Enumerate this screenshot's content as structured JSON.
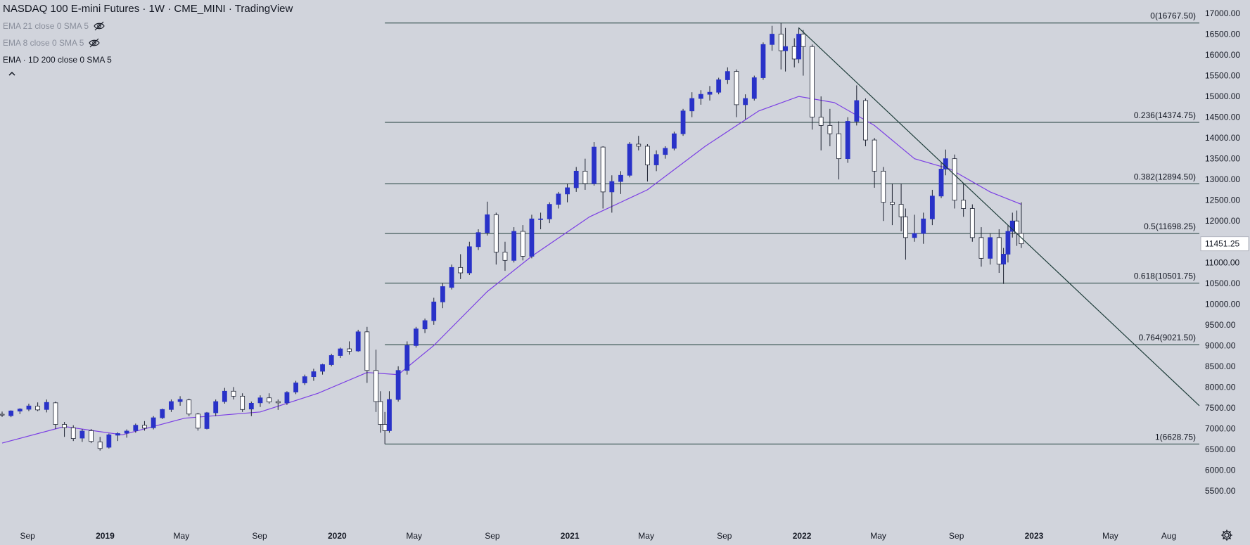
{
  "header": {
    "title": "NASDAQ 100 E-mini Futures · 1W · CME_MINI · TradingView"
  },
  "indicators": [
    {
      "label": "EMA 21 close 0 SMA 5",
      "hidden": true
    },
    {
      "label": "EMA 8 close 0 SMA 5",
      "hidden": true
    },
    {
      "label": "EMA · 1D 200 close 0 SMA 5",
      "hidden": false
    }
  ],
  "icons": {
    "eye_off": "eye-off-icon",
    "collapse": "chevron-up-icon",
    "settings": "gear-icon"
  },
  "colors": {
    "background": "#d1d4dc",
    "bull_candle": "#2932c8",
    "bear_candle": "#ffffff",
    "candle_outline": "#1c2130",
    "ema_line": "#7b3fe4",
    "fib_line": "#1e3d3a",
    "trendline": "#1e3d3a",
    "price_label_bg": "#ffffff"
  },
  "price_axis": {
    "ticks": [
      "17000.00",
      "16500.00",
      "16000.00",
      "15500.00",
      "15000.00",
      "14500.00",
      "14000.00",
      "13500.00",
      "13000.00",
      "12500.00",
      "12000.00",
      "11500.00",
      "11000.00",
      "10500.00",
      "10000.00",
      "9500.00",
      "9000.00",
      "8500.00",
      "8000.00",
      "7500.00",
      "7000.00",
      "6500.00",
      "6000.00",
      "5500.00"
    ],
    "current_price": "11451.25"
  },
  "time_axis": {
    "labels": [
      {
        "text": "Sep",
        "bold": false
      },
      {
        "text": "2019",
        "bold": true
      },
      {
        "text": "May",
        "bold": false
      },
      {
        "text": "Sep",
        "bold": false
      },
      {
        "text": "2020",
        "bold": true
      },
      {
        "text": "May",
        "bold": false
      },
      {
        "text": "Sep",
        "bold": false
      },
      {
        "text": "2021",
        "bold": true
      },
      {
        "text": "May",
        "bold": false
      },
      {
        "text": "Sep",
        "bold": false
      },
      {
        "text": "2022",
        "bold": true
      },
      {
        "text": "May",
        "bold": false
      },
      {
        "text": "Sep",
        "bold": false
      },
      {
        "text": "2023",
        "bold": true
      },
      {
        "text": "May",
        "bold": false
      },
      {
        "text": "Aug",
        "bold": false
      }
    ]
  },
  "chart_data": {
    "type": "candlestick",
    "title": "NASDAQ 100 E-mini Futures · 1W · CME_MINI · TradingView",
    "interval": "1W",
    "ylim": [
      5200,
      17200
    ],
    "x_range": [
      "2018-07-23",
      "2023-09-18"
    ],
    "fibonacci_retracement": {
      "start_date": "2020-03-16",
      "end_date": "2023-09-18",
      "levels": [
        {
          "ratio": "0",
          "price": 16767.5,
          "label": "0(16767.50)"
        },
        {
          "ratio": "0.236",
          "price": 14374.75,
          "label": "0.236(14374.75)"
        },
        {
          "ratio": "0.382",
          "price": 12894.5,
          "label": "0.382(12894.50)"
        },
        {
          "ratio": "0.5",
          "price": 11698.25,
          "label": "0.5(11698.25)"
        },
        {
          "ratio": "0.618",
          "price": 10501.75,
          "label": "0.618(10501.75)"
        },
        {
          "ratio": "0.764",
          "price": 9021.5,
          "label": "0.764(9021.50)"
        },
        {
          "ratio": "1",
          "price": 6628.75,
          "label": "1(6628.75)"
        }
      ]
    },
    "trendline": {
      "start": [
        "2021-12-27",
        16650
      ],
      "end": [
        "2023-09-18",
        7550
      ]
    },
    "ema_line": {
      "name": "EMA · 1D 200 close 0 SMA 5",
      "points": [
        [
          "2018-07-23",
          6650
        ],
        [
          "2018-10-29",
          7050
        ],
        [
          "2019-01-28",
          6850
        ],
        [
          "2019-05-06",
          7250
        ],
        [
          "2019-09-02",
          7400
        ],
        [
          "2019-12-02",
          7850
        ],
        [
          "2020-02-17",
          8350
        ],
        [
          "2020-04-06",
          8300
        ],
        [
          "2020-06-01",
          9000
        ],
        [
          "2020-08-24",
          10300
        ],
        [
          "2020-11-02",
          11150
        ],
        [
          "2021-02-01",
          12100
        ],
        [
          "2021-05-03",
          12750
        ],
        [
          "2021-08-02",
          13800
        ],
        [
          "2021-10-25",
          14650
        ],
        [
          "2021-12-27",
          15000
        ],
        [
          "2022-02-21",
          14850
        ],
        [
          "2022-04-25",
          14300
        ],
        [
          "2022-06-27",
          13500
        ],
        [
          "2022-08-22",
          13250
        ],
        [
          "2022-10-24",
          12700
        ],
        [
          "2022-12-12",
          12400
        ]
      ]
    },
    "candles": [
      [
        "2018-07-23",
        7345,
        7410,
        7280,
        7325
      ],
      [
        "2018-08-06",
        7310,
        7440,
        7275,
        7425
      ],
      [
        "2018-08-20",
        7420,
        7490,
        7350,
        7470
      ],
      [
        "2018-09-03",
        7465,
        7600,
        7420,
        7545
      ],
      [
        "2018-09-17",
        7540,
        7630,
        7420,
        7450
      ],
      [
        "2018-10-01",
        7460,
        7700,
        7390,
        7630
      ],
      [
        "2018-10-15",
        7620,
        7650,
        6990,
        7100
      ],
      [
        "2018-10-29",
        7100,
        7160,
        6800,
        7025
      ],
      [
        "2018-11-12",
        7020,
        7080,
        6700,
        6760
      ],
      [
        "2018-11-26",
        6770,
        6990,
        6680,
        6940
      ],
      [
        "2018-12-10",
        6950,
        6990,
        6650,
        6690
      ],
      [
        "2018-12-24",
        6680,
        6800,
        6470,
        6520
      ],
      [
        "2019-01-07",
        6550,
        6880,
        6520,
        6850
      ],
      [
        "2019-01-21",
        6840,
        6910,
        6700,
        6880
      ],
      [
        "2019-02-04",
        6890,
        6980,
        6780,
        6940
      ],
      [
        "2019-02-18",
        6950,
        7120,
        6900,
        7080
      ],
      [
        "2019-03-04",
        7080,
        7180,
        6950,
        7010
      ],
      [
        "2019-03-18",
        7020,
        7300,
        6980,
        7260
      ],
      [
        "2019-04-01",
        7260,
        7480,
        7230,
        7460
      ],
      [
        "2019-04-15",
        7460,
        7700,
        7400,
        7650
      ],
      [
        "2019-04-29",
        7650,
        7780,
        7550,
        7700
      ],
      [
        "2019-05-13",
        7690,
        7720,
        7300,
        7350
      ],
      [
        "2019-05-27",
        7350,
        7380,
        6950,
        7010
      ],
      [
        "2019-06-10",
        7000,
        7400,
        6980,
        7380
      ],
      [
        "2019-06-24",
        7380,
        7700,
        7300,
        7650
      ],
      [
        "2019-07-08",
        7650,
        7980,
        7600,
        7900
      ],
      [
        "2019-07-22",
        7900,
        8000,
        7700,
        7780
      ],
      [
        "2019-08-05",
        7780,
        7850,
        7400,
        7460
      ],
      [
        "2019-08-19",
        7470,
        7650,
        7300,
        7610
      ],
      [
        "2019-09-02",
        7620,
        7800,
        7520,
        7740
      ],
      [
        "2019-09-16",
        7740,
        7850,
        7600,
        7640
      ],
      [
        "2019-09-30",
        7650,
        7700,
        7450,
        7620
      ],
      [
        "2019-10-14",
        7620,
        7900,
        7570,
        7870
      ],
      [
        "2019-10-28",
        7880,
        8150,
        7830,
        8100
      ],
      [
        "2019-11-11",
        8100,
        8300,
        8050,
        8250
      ],
      [
        "2019-11-25",
        8250,
        8440,
        8150,
        8370
      ],
      [
        "2019-12-09",
        8380,
        8560,
        8300,
        8540
      ],
      [
        "2019-12-23",
        8540,
        8800,
        8500,
        8760
      ],
      [
        "2020-01-06",
        8760,
        8950,
        8700,
        8920
      ],
      [
        "2020-01-20",
        8920,
        9100,
        8780,
        8860
      ],
      [
        "2020-02-03",
        8870,
        9380,
        8850,
        9330
      ],
      [
        "2020-02-17",
        9330,
        9450,
        8100,
        8400
      ],
      [
        "2020-03-02",
        8400,
        8900,
        7400,
        7650
      ],
      [
        "2020-03-09",
        7650,
        7900,
        6900,
        7100
      ],
      [
        "2020-03-16",
        7100,
        7400,
        6628,
        6950
      ],
      [
        "2020-03-23",
        6950,
        7900,
        6900,
        7700
      ],
      [
        "2020-04-06",
        7700,
        8500,
        7650,
        8400
      ],
      [
        "2020-04-20",
        8400,
        9100,
        8300,
        9000
      ],
      [
        "2020-05-04",
        9000,
        9450,
        8950,
        9400
      ],
      [
        "2020-05-18",
        9400,
        9650,
        9300,
        9600
      ],
      [
        "2020-06-01",
        9600,
        10150,
        9500,
        10050
      ],
      [
        "2020-06-15",
        10050,
        10500,
        9900,
        10420
      ],
      [
        "2020-06-29",
        10400,
        10950,
        10350,
        10880
      ],
      [
        "2020-07-13",
        10880,
        11200,
        10600,
        10750
      ],
      [
        "2020-07-27",
        10750,
        11500,
        10700,
        11380
      ],
      [
        "2020-08-10",
        11380,
        11800,
        11300,
        11720
      ],
      [
        "2020-08-24",
        11720,
        12465,
        11650,
        12150
      ],
      [
        "2020-09-07",
        12150,
        12200,
        10950,
        11250
      ],
      [
        "2020-09-21",
        11250,
        11500,
        10800,
        11050
      ],
      [
        "2020-10-05",
        11050,
        11850,
        11000,
        11750
      ],
      [
        "2020-10-19",
        11750,
        11900,
        11050,
        11150
      ],
      [
        "2020-11-02",
        11150,
        12150,
        11100,
        12050
      ],
      [
        "2020-11-16",
        12050,
        12200,
        11800,
        12050
      ],
      [
        "2020-11-30",
        12050,
        12450,
        11950,
        12400
      ],
      [
        "2020-12-14",
        12400,
        12700,
        12300,
        12650
      ],
      [
        "2020-12-28",
        12650,
        12900,
        12450,
        12800
      ],
      [
        "2021-01-11",
        12800,
        13300,
        12700,
        13200
      ],
      [
        "2021-01-25",
        13200,
        13500,
        12750,
        12900
      ],
      [
        "2021-02-08",
        12900,
        13900,
        12850,
        13780
      ],
      [
        "2021-02-22",
        13780,
        13800,
        12300,
        12700
      ],
      [
        "2021-03-08",
        12700,
        13100,
        12200,
        12950
      ],
      [
        "2021-03-22",
        12950,
        13200,
        12650,
        13100
      ],
      [
        "2021-04-05",
        13100,
        13900,
        13050,
        13850
      ],
      [
        "2021-04-19",
        13850,
        14050,
        13700,
        13800
      ],
      [
        "2021-05-03",
        13800,
        13850,
        12950,
        13350
      ],
      [
        "2021-05-17",
        13350,
        13700,
        13200,
        13600
      ],
      [
        "2021-05-31",
        13600,
        13800,
        13500,
        13750
      ],
      [
        "2021-06-14",
        13750,
        14150,
        13700,
        14100
      ],
      [
        "2021-06-28",
        14100,
        14700,
        14050,
        14650
      ],
      [
        "2021-07-12",
        14650,
        15100,
        14500,
        14950
      ],
      [
        "2021-07-26",
        14950,
        15150,
        14800,
        15050
      ],
      [
        "2021-08-09",
        15050,
        15250,
        14900,
        15100
      ],
      [
        "2021-08-23",
        15100,
        15450,
        15050,
        15400
      ],
      [
        "2021-09-06",
        15400,
        15700,
        15300,
        15600
      ],
      [
        "2021-09-20",
        15600,
        15650,
        14500,
        14800
      ],
      [
        "2021-10-04",
        14800,
        15050,
        14450,
        14950
      ],
      [
        "2021-10-18",
        14950,
        15500,
        14900,
        15450
      ],
      [
        "2021-11-01",
        15450,
        16300,
        15400,
        16250
      ],
      [
        "2021-11-15",
        16250,
        16700,
        16100,
        16500
      ],
      [
        "2021-11-29",
        16500,
        16767,
        15650,
        16100
      ],
      [
        "2021-12-06",
        16100,
        16650,
        15600,
        16200
      ],
      [
        "2021-12-20",
        16200,
        16400,
        15700,
        15900
      ],
      [
        "2021-12-27",
        15900,
        16660,
        15800,
        16500
      ],
      [
        "2022-01-03",
        16500,
        16600,
        15500,
        16200
      ],
      [
        "2022-01-17",
        16200,
        16250,
        14200,
        14500
      ],
      [
        "2022-01-31",
        14500,
        15000,
        13700,
        14300
      ],
      [
        "2022-02-14",
        14300,
        14700,
        13800,
        14100
      ],
      [
        "2022-02-28",
        14100,
        14400,
        13000,
        13500
      ],
      [
        "2022-03-14",
        13500,
        14500,
        13400,
        14400
      ],
      [
        "2022-03-28",
        14400,
        15265,
        14300,
        14900
      ],
      [
        "2022-04-11",
        14900,
        14950,
        13800,
        13950
      ],
      [
        "2022-04-25",
        13950,
        14000,
        12800,
        13200
      ],
      [
        "2022-05-09",
        13200,
        13300,
        12000,
        12450
      ],
      [
        "2022-05-23",
        12450,
        12900,
        11900,
        12400
      ],
      [
        "2022-06-06",
        12400,
        12900,
        11750,
        12100
      ],
      [
        "2022-06-13",
        12100,
        12300,
        11068,
        11600
      ],
      [
        "2022-06-27",
        11600,
        12150,
        11500,
        11700
      ],
      [
        "2022-07-11",
        11700,
        12200,
        11450,
        12050
      ],
      [
        "2022-07-25",
        12050,
        12750,
        11900,
        12600
      ],
      [
        "2022-08-08",
        12600,
        13400,
        12550,
        13250
      ],
      [
        "2022-08-15",
        13250,
        13720,
        13100,
        13500
      ],
      [
        "2022-08-29",
        13500,
        13600,
        12300,
        12500
      ],
      [
        "2022-09-12",
        12500,
        12900,
        12100,
        12300
      ],
      [
        "2022-09-26",
        12300,
        12400,
        11500,
        11600
      ],
      [
        "2022-10-10",
        11600,
        11850,
        10900,
        11100
      ],
      [
        "2022-10-24",
        11100,
        11700,
        10950,
        11600
      ],
      [
        "2022-11-07",
        11600,
        11800,
        10750,
        10960
      ],
      [
        "2022-11-14",
        10960,
        11350,
        10484,
        11200
      ],
      [
        "2022-11-21",
        11200,
        11900,
        11000,
        11750
      ],
      [
        "2022-11-28",
        11750,
        12200,
        11600,
        12000
      ],
      [
        "2022-12-05",
        12000,
        12250,
        11400,
        11700
      ],
      [
        "2022-12-12",
        11700,
        12450,
        11350,
        11451
      ]
    ]
  }
}
